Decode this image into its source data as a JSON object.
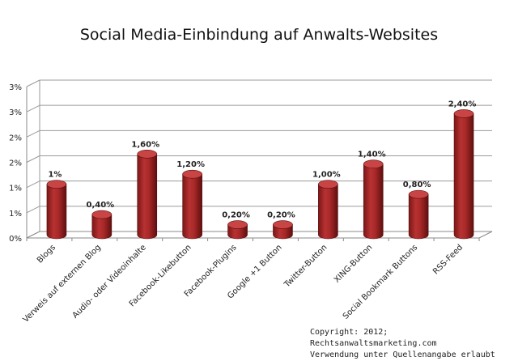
{
  "chart_data": {
    "type": "bar",
    "title": "Social Media-Einbindung auf Anwalts-Websites",
    "categories": [
      "Blogs",
      "Verweis auf externen Blog",
      "Audio- oder Videoinhalte",
      "Facebook-Likebutton",
      "Facebook-Plugins",
      "Google +1 Button",
      "Twitter-Button",
      "XING-Button",
      "Social Bookmark Buttons",
      "RSS-Feed"
    ],
    "values": [
      1.0,
      0.4,
      1.6,
      1.2,
      0.2,
      0.2,
      1.0,
      1.4,
      0.8,
      2.4
    ],
    "data_labels": [
      "1%",
      "0,40%",
      "1,60%",
      "1,20%",
      "0,20%",
      "0,20%",
      "1,00%",
      "1,40%",
      "0,80%",
      "2,40%"
    ],
    "ylim": [
      0,
      3
    ],
    "y_tick_values": [
      0,
      0.5,
      1,
      1.5,
      2,
      2.5,
      3
    ],
    "y_tick_labels": [
      "0%",
      "1%",
      "1%",
      "2%",
      "2%",
      "3%",
      "3%"
    ],
    "grid": true,
    "bar_color": "#a52a2a",
    "bar_top_color": "#c94444"
  },
  "footer": {
    "line1": "Copyright: 2012; Rechtsanwaltsmarketing.com",
    "line2": "Verwendung unter Quellenangabe erlaubt"
  }
}
